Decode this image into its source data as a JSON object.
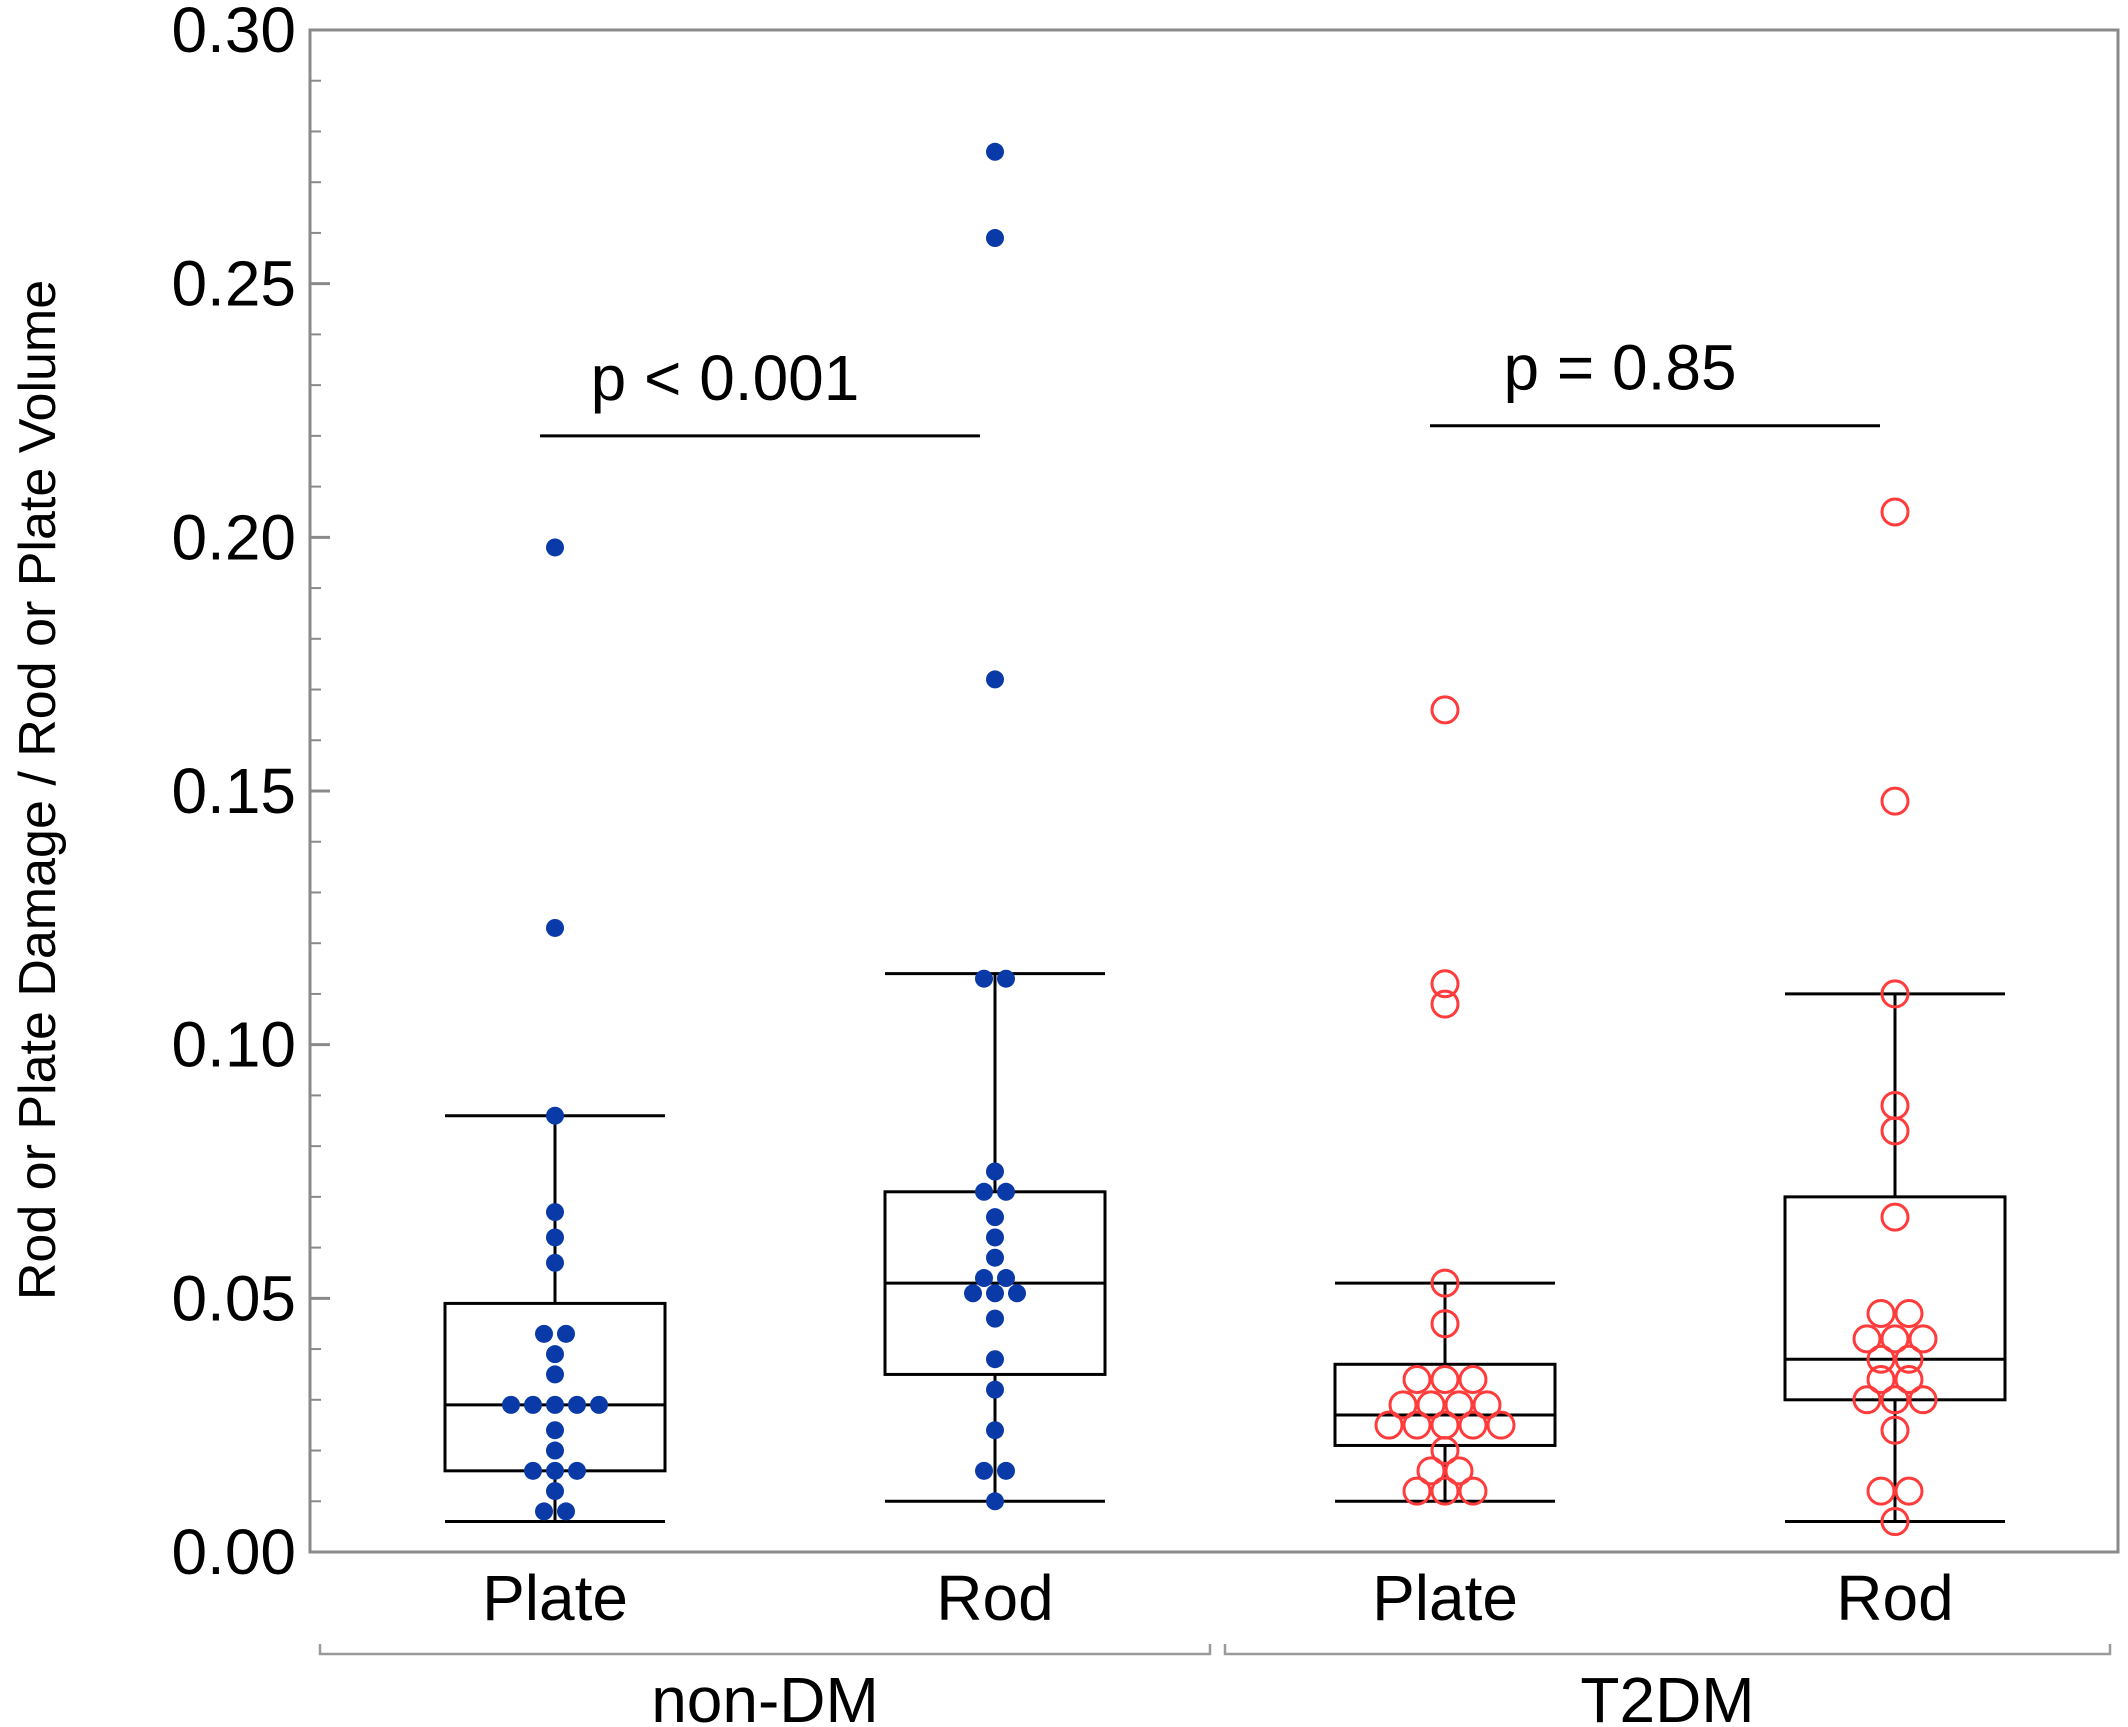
{
  "chart_data": {
    "type": "box",
    "ylabel": "Rod or Plate Damage / Rod or Plate Volume",
    "ylim": [
      0,
      0.3
    ],
    "yticks": [
      "0.00",
      "0.05",
      "0.10",
      "0.15",
      "0.20",
      "0.25",
      "0.30"
    ],
    "yticks_values": [
      0,
      0.05,
      0.1,
      0.15,
      0.2,
      0.25,
      0.3
    ],
    "groups": [
      {
        "name": "non-DM",
        "color": "#0a3aa8",
        "marker": "filled"
      },
      {
        "name": "T2DM",
        "color": "#ff3b3b",
        "marker": "open"
      }
    ],
    "boxes": [
      {
        "group": "non-DM",
        "category": "Plate",
        "whisker_low": 0.006,
        "q1": 0.016,
        "median": 0.029,
        "q3": 0.049,
        "whisker_high": 0.086,
        "points": [
          0.198,
          0.123,
          0.086,
          0.067,
          0.062,
          0.057,
          0.043,
          0.043,
          0.039,
          0.035,
          0.029,
          0.029,
          0.029,
          0.029,
          0.029,
          0.024,
          0.02,
          0.016,
          0.016,
          0.016,
          0.012,
          0.008,
          0.008
        ]
      },
      {
        "group": "non-DM",
        "category": "Rod",
        "whisker_low": 0.01,
        "q1": 0.035,
        "median": 0.053,
        "q3": 0.071,
        "whisker_high": 0.114,
        "points": [
          0.276,
          0.259,
          0.172,
          0.113,
          0.113,
          0.075,
          0.071,
          0.071,
          0.066,
          0.062,
          0.058,
          0.054,
          0.054,
          0.051,
          0.051,
          0.051,
          0.046,
          0.038,
          0.032,
          0.024,
          0.016,
          0.016,
          0.01
        ]
      },
      {
        "group": "T2DM",
        "category": "Plate",
        "whisker_low": 0.01,
        "q1": 0.021,
        "median": 0.027,
        "q3": 0.037,
        "whisker_high": 0.053,
        "points": [
          0.166,
          0.112,
          0.108,
          0.053,
          0.045,
          0.034,
          0.034,
          0.034,
          0.029,
          0.029,
          0.029,
          0.029,
          0.025,
          0.025,
          0.025,
          0.025,
          0.025,
          0.02,
          0.016,
          0.016,
          0.012,
          0.012,
          0.012
        ]
      },
      {
        "group": "T2DM",
        "category": "Rod",
        "whisker_low": 0.006,
        "q1": 0.03,
        "median": 0.038,
        "q3": 0.07,
        "whisker_high": 0.11,
        "points": [
          0.205,
          0.148,
          0.11,
          0.088,
          0.083,
          0.066,
          0.047,
          0.047,
          0.042,
          0.042,
          0.042,
          0.038,
          0.038,
          0.034,
          0.034,
          0.03,
          0.03,
          0.03,
          0.024,
          0.012,
          0.012,
          0.006
        ]
      }
    ],
    "comparisons": [
      {
        "group": "non-DM",
        "label": "p < 0.001",
        "y": 0.22
      },
      {
        "group": "T2DM",
        "label": "p = 0.85",
        "y": 0.222
      }
    ],
    "grid": false,
    "legend": "none"
  }
}
